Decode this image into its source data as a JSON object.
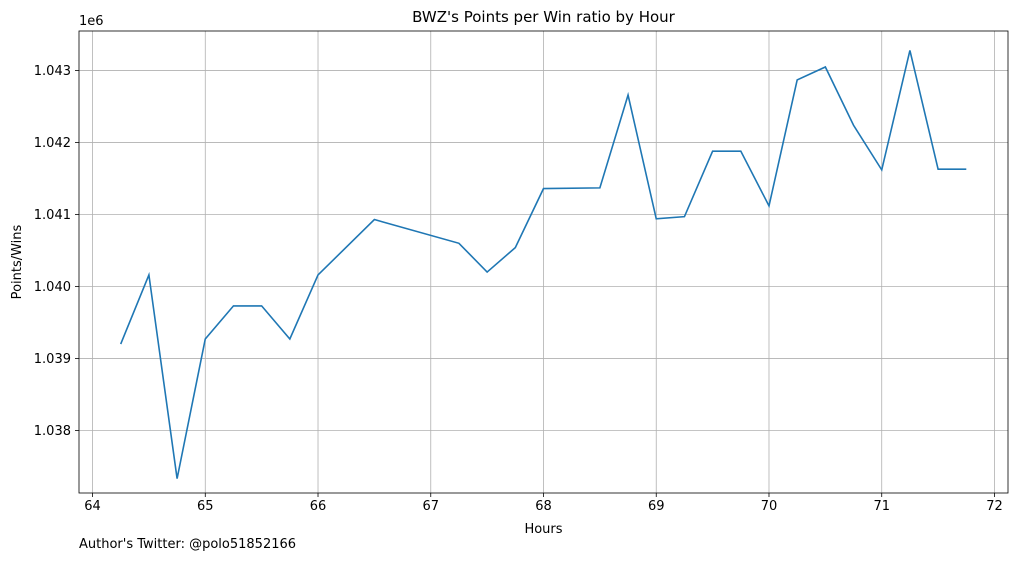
{
  "chart_data": {
    "type": "line",
    "title": "BWZ's Points per Win ratio by Hour",
    "xlabel": "Hours",
    "ylabel": "Points/Wins",
    "y_offset_label": "1e6",
    "xlim": [
      63.88,
      72.12
    ],
    "ylim": [
      1.03713,
      1.04355
    ],
    "xticks": [
      64,
      65,
      66,
      67,
      68,
      69,
      70,
      71,
      72
    ],
    "xtick_labels": [
      "64",
      "65",
      "66",
      "67",
      "68",
      "69",
      "70",
      "71",
      "72"
    ],
    "yticks": [
      1.038,
      1.039,
      1.04,
      1.041,
      1.042,
      1.043
    ],
    "ytick_labels": [
      "1.038",
      "1.039",
      "1.040",
      "1.041",
      "1.042",
      "1.043"
    ],
    "grid": true,
    "line_color": "#1f77b4",
    "series": [
      {
        "x": [
          64.25,
          64.5,
          64.75,
          65.0,
          65.25,
          65.5,
          65.75,
          66.0,
          66.5,
          67.25,
          67.5,
          67.75,
          68.0,
          68.5,
          68.75,
          69.0,
          69.25,
          69.5,
          69.75,
          70.0,
          70.25,
          70.5,
          70.75,
          71.0,
          71.25,
          71.5,
          71.75
        ],
        "y": [
          1.0392,
          1.04016,
          1.03733,
          1.03927,
          1.03973,
          1.03973,
          1.03927,
          1.04016,
          1.04093,
          1.0406,
          1.0402,
          1.04054,
          1.04136,
          1.04137,
          1.04266,
          1.04094,
          1.04097,
          1.04188,
          1.04188,
          1.04112,
          1.04287,
          1.04305,
          1.04224,
          1.04162,
          1.04328,
          1.04163,
          1.04163
        ]
      }
    ]
  },
  "footer": "Author's Twitter: @polo51852166"
}
